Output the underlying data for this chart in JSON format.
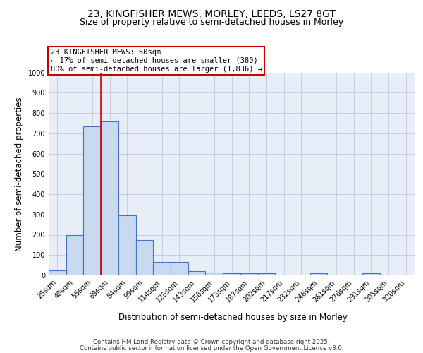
{
  "title_line1": "23, KINGFISHER MEWS, MORLEY, LEEDS, LS27 8GT",
  "title_line2": "Size of property relative to semi-detached houses in Morley",
  "xlabel": "Distribution of semi-detached houses by size in Morley",
  "ylabel": "Number of semi-detached properties",
  "categories": [
    "25sqm",
    "40sqm",
    "55sqm",
    "69sqm",
    "84sqm",
    "99sqm",
    "114sqm",
    "128sqm",
    "143sqm",
    "158sqm",
    "173sqm",
    "187sqm",
    "202sqm",
    "217sqm",
    "232sqm",
    "246sqm",
    "261sqm",
    "276sqm",
    "291sqm",
    "305sqm",
    "320sqm"
  ],
  "values": [
    25,
    200,
    735,
    760,
    295,
    175,
    65,
    65,
    20,
    15,
    10,
    10,
    10,
    0,
    0,
    10,
    0,
    0,
    10,
    0,
    0
  ],
  "bar_color": "#c9d9f0",
  "bar_edge_color": "#4472c4",
  "bar_linewidth": 0.8,
  "red_line_x": 2.5,
  "red_line_color": "#cc0000",
  "annotation_text": "23 KINGFISHER MEWS: 60sqm\n← 17% of semi-detached houses are smaller (380)\n80% of semi-detached houses are larger (1,836) →",
  "annotation_box_color": "#ffffff",
  "annotation_box_edge": "#cc0000",
  "ylim": [
    0,
    1000
  ],
  "yticks": [
    0,
    100,
    200,
    300,
    400,
    500,
    600,
    700,
    800,
    900,
    1000
  ],
  "grid_color": "#c0c8d8",
  "background_color": "#e8eef8",
  "footer_line1": "Contains HM Land Registry data © Crown copyright and database right 2025.",
  "footer_line2": "Contains public sector information licensed under the Open Government Licence v3.0.",
  "title_fontsize": 10,
  "subtitle_fontsize": 9,
  "axis_label_fontsize": 8.5,
  "tick_fontsize": 7,
  "annotation_fontsize": 7.5,
  "footer_fontsize": 6.2
}
